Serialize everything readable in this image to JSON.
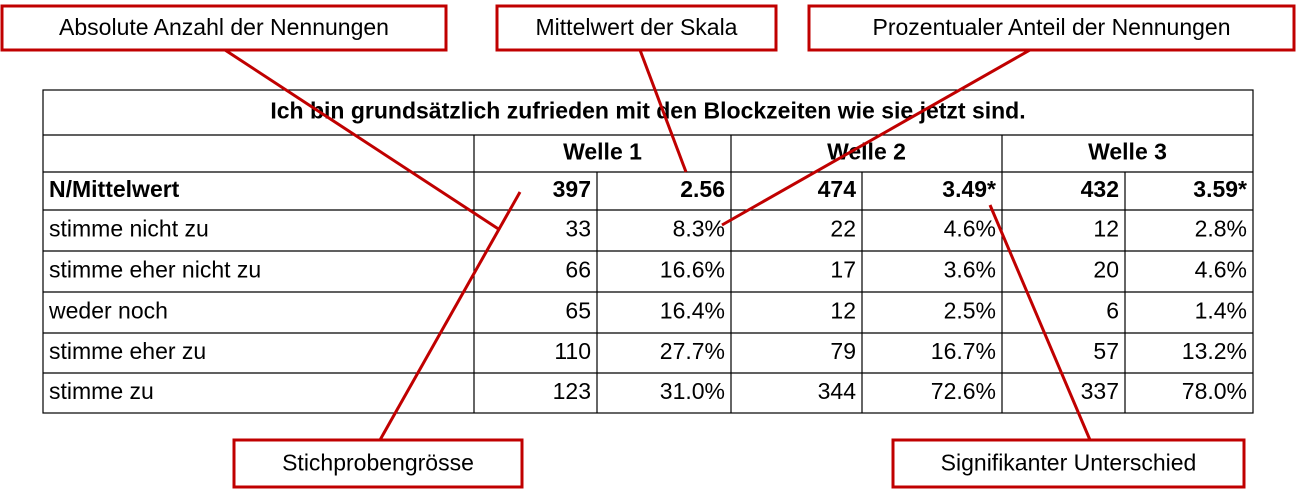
{
  "annotations": [
    "Absolute Anzahl der Nennungen",
    "Mittelwert der Skala",
    "Prozentualer Anteil der Nennungen",
    "Stichprobengrösse",
    "Signifikanter Unterschied"
  ],
  "table": {
    "title": "Ich bin grundsätzlich zufrieden mit den Blockzeiten wie sie jetzt sind.",
    "groups": [
      "Welle 1",
      "Welle 2",
      "Welle 3"
    ],
    "summary": {
      "label": "N/Mittelwert",
      "cells": [
        "397",
        "2.56",
        "474",
        "3.49*",
        "432",
        "3.59*"
      ]
    },
    "rows": [
      {
        "label": "stimme nicht zu",
        "cells": [
          "33",
          "8.3%",
          "22",
          "4.6%",
          "12",
          "2.8%"
        ]
      },
      {
        "label": "stimme eher nicht zu",
        "cells": [
          "66",
          "16.6%",
          "17",
          "3.6%",
          "20",
          "4.6%"
        ]
      },
      {
        "label": "weder noch",
        "cells": [
          "65",
          "16.4%",
          "12",
          "2.5%",
          "6",
          "1.4%"
        ]
      },
      {
        "label": "stimme eher zu",
        "cells": [
          "110",
          "27.7%",
          "79",
          "16.7%",
          "57",
          "13.2%"
        ]
      },
      {
        "label": "stimme zu",
        "cells": [
          "123",
          "31.0%",
          "344",
          "72.6%",
          "337",
          "78.0%"
        ]
      }
    ]
  }
}
